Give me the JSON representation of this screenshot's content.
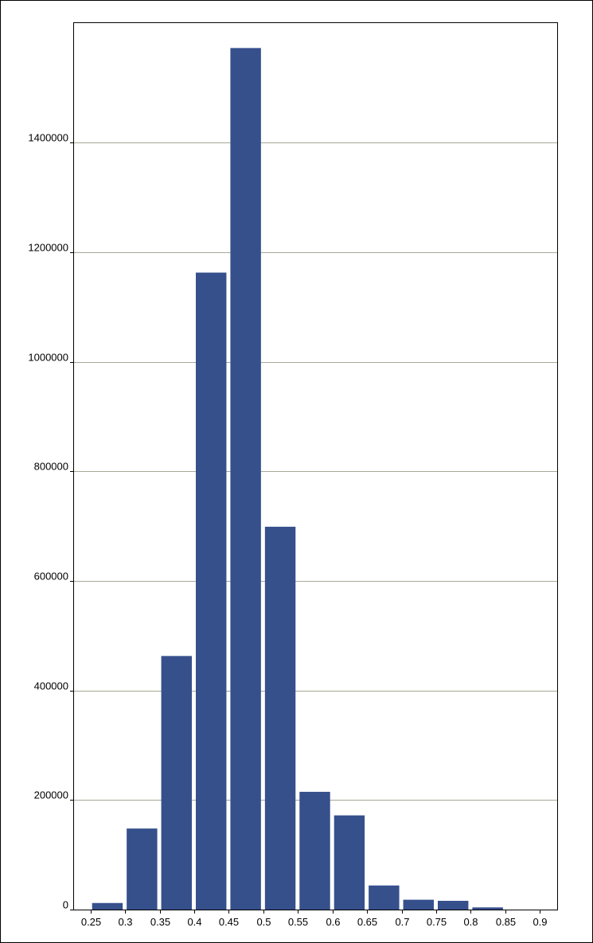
{
  "chart_data": {
    "type": "bar",
    "title": "",
    "xlabel": "",
    "ylabel": "",
    "categories": [
      "0.25-0.3",
      "0.3-0.35",
      "0.35-0.4",
      "0.4-0.45",
      "0.45-0.5",
      "0.5-0.55",
      "0.55-0.6",
      "0.6-0.65",
      "0.65-0.7",
      "0.7-0.75",
      "0.75-0.8",
      "0.8-0.85",
      "0.85-0.9"
    ],
    "bin_edges": [
      0.25,
      0.3,
      0.35,
      0.4,
      0.45,
      0.5,
      0.55,
      0.6,
      0.65,
      0.7,
      0.75,
      0.8,
      0.85,
      0.9
    ],
    "values": [
      12000,
      148000,
      463000,
      1163000,
      1573000,
      699000,
      215000,
      172000,
      44000,
      18000,
      16000,
      4000,
      0
    ],
    "x_tick_labels": [
      "0.25",
      "0.3",
      "0.35",
      "0.4",
      "0.45",
      "0.5",
      "0.55",
      "0.6",
      "0.65",
      "0.7",
      "0.75",
      "0.8",
      "0.85",
      "0.9"
    ],
    "y_ticks": [
      0,
      200000,
      400000,
      600000,
      800000,
      1000000,
      1200000,
      1400000
    ],
    "y_tick_labels": [
      "0",
      "200000",
      "400000",
      "600000",
      "800000",
      "1000000",
      "1200000",
      "1400000"
    ],
    "ylim": [
      0,
      1620000
    ],
    "grid": true,
    "colors": {
      "bar": "#36508C",
      "grid": "#A8A898",
      "axis": "#000000"
    }
  }
}
